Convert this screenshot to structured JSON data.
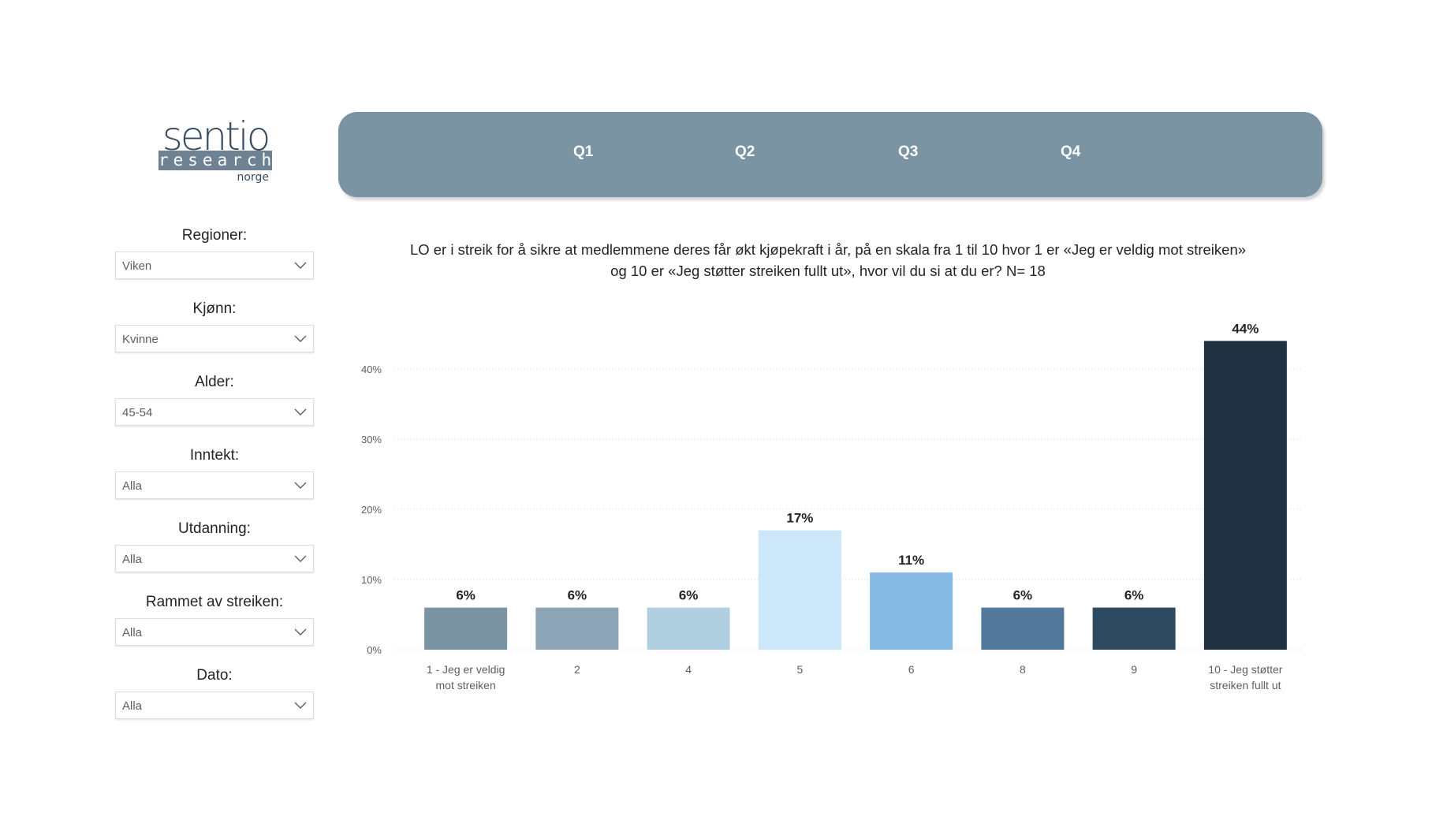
{
  "logo": {
    "word": "sentio",
    "band": "research",
    "sub": "norge"
  },
  "tabs": [
    {
      "label": "Q1"
    },
    {
      "label": "Q2"
    },
    {
      "label": "Q3"
    },
    {
      "label": "Q4"
    }
  ],
  "filters": [
    {
      "label": "Regioner:",
      "value": "Viken"
    },
    {
      "label": "Kjønn:",
      "value": "Kvinne"
    },
    {
      "label": "Alder:",
      "value": "45-54"
    },
    {
      "label": "Inntekt:",
      "value": "Alla"
    },
    {
      "label": "Utdanning:",
      "value": "Alla"
    },
    {
      "label": "Rammet av streiken:",
      "value": "Alla"
    },
    {
      "label": "Dato:",
      "value": "Alla"
    }
  ],
  "colors": {
    "tabbar": "#7a94a4",
    "text": "#252423",
    "grid": "#d9d9d9"
  },
  "chart_data": {
    "type": "bar",
    "title_line1": "LO er i streik for å sikre at medlemmene deres får økt kjøpekraft i år, på en skala fra 1 til 10 hvor 1 er «Jeg er veldig mot streiken»",
    "title_line2": "og 10 er «Jeg støtter streiken fullt ut», hvor vil du si at du er? N= 18",
    "categories": [
      [
        "1 - Jeg er veldig",
        "mot streiken"
      ],
      [
        "2"
      ],
      [
        "4"
      ],
      [
        "5"
      ],
      [
        "6"
      ],
      [
        "8"
      ],
      [
        "9"
      ],
      [
        "10 - Jeg støtter",
        "streiken fullt ut"
      ]
    ],
    "values": [
      6,
      6,
      6,
      17,
      11,
      6,
      6,
      44
    ],
    "value_labels": [
      "6%",
      "6%",
      "6%",
      "17%",
      "11%",
      "6%",
      "6%",
      "44%"
    ],
    "bar_colors": [
      "#7a94a4",
      "#8ea4b7",
      "#b0d0e2",
      "#cce6fa",
      "#84b9e4",
      "#52799a",
      "#2e4a60",
      "#1f3041"
    ],
    "yticks": [
      0,
      10,
      20,
      30,
      40
    ],
    "ytick_labels": [
      "0%",
      "10%",
      "20%",
      "30%",
      "40%"
    ],
    "ylim": [
      0,
      44
    ],
    "grid": true,
    "xlabel": "",
    "ylabel": ""
  }
}
